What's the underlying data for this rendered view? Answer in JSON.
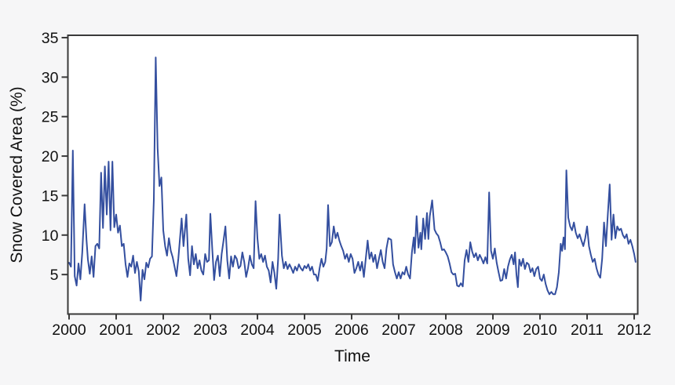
{
  "page": {
    "background_color": "#f6f6f7",
    "plot_background_color": "#ffffff",
    "axis_color": "#3a3a3a",
    "text_color": "#111111"
  },
  "chart_data": {
    "type": "line",
    "title": "",
    "xlabel": "Time",
    "ylabel": "Snow Covered Area (%)",
    "x_ticks": [
      2000,
      2001,
      2002,
      2003,
      2004,
      2005,
      2006,
      2007,
      2008,
      2009,
      2010,
      2011,
      2012
    ],
    "y_ticks": [
      5,
      10,
      15,
      20,
      25,
      30,
      35
    ],
    "xlim": [
      2000,
      2012.07
    ],
    "ylim": [
      0,
      35.3
    ],
    "grid": false,
    "legend": "none",
    "line_color": "#344f9f",
    "series": [
      {
        "name": "Snow Covered Area",
        "points": [
          [
            2000.0,
            6.5
          ],
          [
            2000.04,
            6.0
          ],
          [
            2000.08,
            20.7
          ],
          [
            2000.12,
            4.8
          ],
          [
            2000.16,
            3.6
          ],
          [
            2000.2,
            6.4
          ],
          [
            2000.24,
            4.4
          ],
          [
            2000.28,
            7.8
          ],
          [
            2000.33,
            13.9
          ],
          [
            2000.37,
            9.4
          ],
          [
            2000.4,
            6.9
          ],
          [
            2000.44,
            5.1
          ],
          [
            2000.48,
            7.3
          ],
          [
            2000.52,
            4.7
          ],
          [
            2000.56,
            8.6
          ],
          [
            2000.6,
            8.9
          ],
          [
            2000.64,
            8.3
          ],
          [
            2000.68,
            17.9
          ],
          [
            2000.72,
            10.9
          ],
          [
            2000.76,
            18.7
          ],
          [
            2000.8,
            12.6
          ],
          [
            2000.84,
            19.3
          ],
          [
            2000.88,
            10.6
          ],
          [
            2000.92,
            19.3
          ],
          [
            2000.96,
            11.0
          ],
          [
            2001.0,
            12.6
          ],
          [
            2001.04,
            10.3
          ],
          [
            2001.08,
            11.2
          ],
          [
            2001.12,
            8.6
          ],
          [
            2001.16,
            8.9
          ],
          [
            2001.2,
            6.3
          ],
          [
            2001.24,
            4.7
          ],
          [
            2001.28,
            6.4
          ],
          [
            2001.32,
            6.0
          ],
          [
            2001.36,
            7.4
          ],
          [
            2001.4,
            5.2
          ],
          [
            2001.44,
            6.6
          ],
          [
            2001.48,
            5.4
          ],
          [
            2001.52,
            1.7
          ],
          [
            2001.56,
            5.6
          ],
          [
            2001.6,
            4.4
          ],
          [
            2001.64,
            6.5
          ],
          [
            2001.68,
            5.9
          ],
          [
            2001.72,
            7.0
          ],
          [
            2001.76,
            7.3
          ],
          [
            2001.8,
            14.5
          ],
          [
            2001.84,
            32.5
          ],
          [
            2001.88,
            21.0
          ],
          [
            2001.92,
            16.2
          ],
          [
            2001.96,
            17.3
          ],
          [
            2002.0,
            10.6
          ],
          [
            2002.04,
            8.6
          ],
          [
            2002.08,
            7.4
          ],
          [
            2002.12,
            9.6
          ],
          [
            2002.16,
            8.0
          ],
          [
            2002.2,
            7.2
          ],
          [
            2002.24,
            6.0
          ],
          [
            2002.28,
            4.8
          ],
          [
            2002.32,
            7.0
          ],
          [
            2002.39,
            12.1
          ],
          [
            2002.43,
            8.6
          ],
          [
            2002.49,
            12.6
          ],
          [
            2002.53,
            7.0
          ],
          [
            2002.57,
            4.9
          ],
          [
            2002.61,
            8.6
          ],
          [
            2002.65,
            6.3
          ],
          [
            2002.69,
            7.6
          ],
          [
            2002.73,
            5.8
          ],
          [
            2002.77,
            6.8
          ],
          [
            2002.81,
            5.5
          ],
          [
            2002.85,
            5.0
          ],
          [
            2002.89,
            7.6
          ],
          [
            2002.93,
            6.6
          ],
          [
            2002.97,
            6.8
          ],
          [
            2003.0,
            12.7
          ],
          [
            2003.04,
            8.3
          ],
          [
            2003.08,
            4.3
          ],
          [
            2003.12,
            6.6
          ],
          [
            2003.16,
            7.4
          ],
          [
            2003.2,
            4.8
          ],
          [
            2003.24,
            7.6
          ],
          [
            2003.28,
            9.3
          ],
          [
            2003.32,
            11.1
          ],
          [
            2003.36,
            6.8
          ],
          [
            2003.4,
            4.5
          ],
          [
            2003.44,
            7.3
          ],
          [
            2003.48,
            6.0
          ],
          [
            2003.52,
            7.4
          ],
          [
            2003.56,
            7.0
          ],
          [
            2003.6,
            5.8
          ],
          [
            2003.64,
            6.1
          ],
          [
            2003.68,
            7.8
          ],
          [
            2003.72,
            6.6
          ],
          [
            2003.76,
            4.7
          ],
          [
            2003.8,
            5.8
          ],
          [
            2003.84,
            7.4
          ],
          [
            2003.88,
            6.3
          ],
          [
            2003.92,
            5.8
          ],
          [
            2003.96,
            14.3
          ],
          [
            2004.0,
            9.6
          ],
          [
            2004.04,
            7.0
          ],
          [
            2004.08,
            7.6
          ],
          [
            2004.12,
            6.6
          ],
          [
            2004.16,
            7.4
          ],
          [
            2004.2,
            6.0
          ],
          [
            2004.24,
            5.5
          ],
          [
            2004.28,
            4.0
          ],
          [
            2004.32,
            6.6
          ],
          [
            2004.36,
            5.2
          ],
          [
            2004.4,
            3.2
          ],
          [
            2004.44,
            7.0
          ],
          [
            2004.47,
            12.6
          ],
          [
            2004.52,
            7.4
          ],
          [
            2004.56,
            5.8
          ],
          [
            2004.6,
            6.6
          ],
          [
            2004.64,
            5.7
          ],
          [
            2004.68,
            6.3
          ],
          [
            2004.72,
            5.8
          ],
          [
            2004.76,
            5.2
          ],
          [
            2004.8,
            6.0
          ],
          [
            2004.84,
            5.5
          ],
          [
            2004.88,
            6.3
          ],
          [
            2004.92,
            5.8
          ],
          [
            2004.96,
            5.5
          ],
          [
            2005.0,
            6.1
          ],
          [
            2005.04,
            5.8
          ],
          [
            2005.08,
            6.3
          ],
          [
            2005.12,
            5.5
          ],
          [
            2005.16,
            6.0
          ],
          [
            2005.2,
            5.0
          ],
          [
            2005.24,
            5.0
          ],
          [
            2005.28,
            4.2
          ],
          [
            2005.32,
            5.8
          ],
          [
            2005.36,
            7.0
          ],
          [
            2005.4,
            6.0
          ],
          [
            2005.44,
            6.6
          ],
          [
            2005.47,
            8.3
          ],
          [
            2005.5,
            13.8
          ],
          [
            2005.54,
            8.6
          ],
          [
            2005.58,
            9.1
          ],
          [
            2005.62,
            11.1
          ],
          [
            2005.66,
            9.6
          ],
          [
            2005.7,
            10.3
          ],
          [
            2005.74,
            9.3
          ],
          [
            2005.78,
            8.6
          ],
          [
            2005.82,
            8.0
          ],
          [
            2005.86,
            7.0
          ],
          [
            2005.9,
            7.6
          ],
          [
            2005.94,
            6.6
          ],
          [
            2005.98,
            7.6
          ],
          [
            2006.02,
            7.0
          ],
          [
            2006.06,
            5.2
          ],
          [
            2006.1,
            5.8
          ],
          [
            2006.14,
            6.6
          ],
          [
            2006.18,
            5.5
          ],
          [
            2006.22,
            6.6
          ],
          [
            2006.26,
            4.7
          ],
          [
            2006.3,
            7.0
          ],
          [
            2006.34,
            9.3
          ],
          [
            2006.38,
            7.0
          ],
          [
            2006.42,
            7.8
          ],
          [
            2006.46,
            6.6
          ],
          [
            2006.5,
            7.5
          ],
          [
            2006.54,
            5.8
          ],
          [
            2006.58,
            7.0
          ],
          [
            2006.62,
            8.1
          ],
          [
            2006.66,
            6.6
          ],
          [
            2006.7,
            5.8
          ],
          [
            2006.74,
            8.3
          ],
          [
            2006.78,
            9.6
          ],
          [
            2006.84,
            9.4
          ],
          [
            2006.88,
            6.3
          ],
          [
            2006.92,
            5.3
          ],
          [
            2006.96,
            4.5
          ],
          [
            2007.0,
            5.3
          ],
          [
            2007.04,
            4.5
          ],
          [
            2007.08,
            5.3
          ],
          [
            2007.12,
            5.0
          ],
          [
            2007.16,
            6.0
          ],
          [
            2007.2,
            5.0
          ],
          [
            2007.24,
            4.5
          ],
          [
            2007.28,
            7.8
          ],
          [
            2007.32,
            9.7
          ],
          [
            2007.34,
            7.7
          ],
          [
            2007.38,
            12.4
          ],
          [
            2007.42,
            8.4
          ],
          [
            2007.46,
            10.3
          ],
          [
            2007.48,
            8.2
          ],
          [
            2007.52,
            12.1
          ],
          [
            2007.56,
            9.5
          ],
          [
            2007.6,
            12.8
          ],
          [
            2007.63,
            9.5
          ],
          [
            2007.66,
            12.4
          ],
          [
            2007.71,
            14.4
          ],
          [
            2007.76,
            10.7
          ],
          [
            2007.8,
            10.2
          ],
          [
            2007.84,
            9.9
          ],
          [
            2007.88,
            9.1
          ],
          [
            2007.92,
            8.1
          ],
          [
            2007.96,
            8.2
          ],
          [
            2008.0,
            7.8
          ],
          [
            2008.04,
            7.3
          ],
          [
            2008.08,
            6.4
          ],
          [
            2008.12,
            5.3
          ],
          [
            2008.16,
            5.0
          ],
          [
            2008.2,
            5.1
          ],
          [
            2008.24,
            3.6
          ],
          [
            2008.28,
            3.5
          ],
          [
            2008.32,
            3.9
          ],
          [
            2008.36,
            3.5
          ],
          [
            2008.4,
            6.8
          ],
          [
            2008.44,
            8.1
          ],
          [
            2008.48,
            6.6
          ],
          [
            2008.52,
            9.1
          ],
          [
            2008.56,
            7.9
          ],
          [
            2008.6,
            7.2
          ],
          [
            2008.64,
            7.7
          ],
          [
            2008.68,
            6.8
          ],
          [
            2008.72,
            7.5
          ],
          [
            2008.76,
            7.0
          ],
          [
            2008.8,
            6.4
          ],
          [
            2008.84,
            7.2
          ],
          [
            2008.88,
            6.4
          ],
          [
            2008.92,
            15.4
          ],
          [
            2008.96,
            8.0
          ],
          [
            2009.0,
            7.0
          ],
          [
            2009.04,
            8.3
          ],
          [
            2009.08,
            6.5
          ],
          [
            2009.12,
            5.3
          ],
          [
            2009.16,
            4.2
          ],
          [
            2009.2,
            4.3
          ],
          [
            2009.24,
            5.7
          ],
          [
            2009.28,
            4.5
          ],
          [
            2009.32,
            6.0
          ],
          [
            2009.36,
            6.9
          ],
          [
            2009.4,
            7.5
          ],
          [
            2009.44,
            6.3
          ],
          [
            2009.47,
            7.8
          ],
          [
            2009.5,
            5.0
          ],
          [
            2009.53,
            3.4
          ],
          [
            2009.56,
            6.9
          ],
          [
            2009.6,
            6.1
          ],
          [
            2009.64,
            7.0
          ],
          [
            2009.68,
            5.7
          ],
          [
            2009.72,
            6.5
          ],
          [
            2009.76,
            6.3
          ],
          [
            2009.8,
            5.3
          ],
          [
            2009.84,
            5.8
          ],
          [
            2009.88,
            4.8
          ],
          [
            2009.92,
            5.7
          ],
          [
            2009.96,
            6.0
          ],
          [
            2010.0,
            4.5
          ],
          [
            2010.04,
            4.2
          ],
          [
            2010.08,
            5.0
          ],
          [
            2010.12,
            3.8
          ],
          [
            2010.16,
            3.0
          ],
          [
            2010.2,
            2.5
          ],
          [
            2010.24,
            2.8
          ],
          [
            2010.28,
            2.5
          ],
          [
            2010.32,
            2.5
          ],
          [
            2010.36,
            3.4
          ],
          [
            2010.4,
            5.3
          ],
          [
            2010.44,
            8.9
          ],
          [
            2010.47,
            8.0
          ],
          [
            2010.5,
            9.7
          ],
          [
            2010.53,
            8.2
          ],
          [
            2010.56,
            18.2
          ],
          [
            2010.6,
            12.2
          ],
          [
            2010.64,
            11.1
          ],
          [
            2010.68,
            10.6
          ],
          [
            2010.72,
            11.6
          ],
          [
            2010.76,
            10.3
          ],
          [
            2010.8,
            9.6
          ],
          [
            2010.84,
            10.1
          ],
          [
            2010.88,
            9.3
          ],
          [
            2010.92,
            8.6
          ],
          [
            2010.96,
            9.6
          ],
          [
            2011.0,
            11.1
          ],
          [
            2011.04,
            8.6
          ],
          [
            2011.08,
            7.5
          ],
          [
            2011.12,
            6.6
          ],
          [
            2011.16,
            7.0
          ],
          [
            2011.2,
            5.8
          ],
          [
            2011.24,
            5.0
          ],
          [
            2011.28,
            4.6
          ],
          [
            2011.32,
            7.0
          ],
          [
            2011.36,
            11.6
          ],
          [
            2011.4,
            8.6
          ],
          [
            2011.44,
            12.6
          ],
          [
            2011.48,
            16.4
          ],
          [
            2011.52,
            9.4
          ],
          [
            2011.56,
            12.6
          ],
          [
            2011.6,
            9.6
          ],
          [
            2011.64,
            11.1
          ],
          [
            2011.68,
            10.6
          ],
          [
            2011.72,
            10.8
          ],
          [
            2011.76,
            10.0
          ],
          [
            2011.8,
            9.6
          ],
          [
            2011.84,
            10.1
          ],
          [
            2011.88,
            8.9
          ],
          [
            2011.92,
            9.4
          ],
          [
            2011.96,
            8.6
          ],
          [
            2012.0,
            7.6
          ],
          [
            2012.03,
            6.6
          ]
        ]
      }
    ]
  }
}
